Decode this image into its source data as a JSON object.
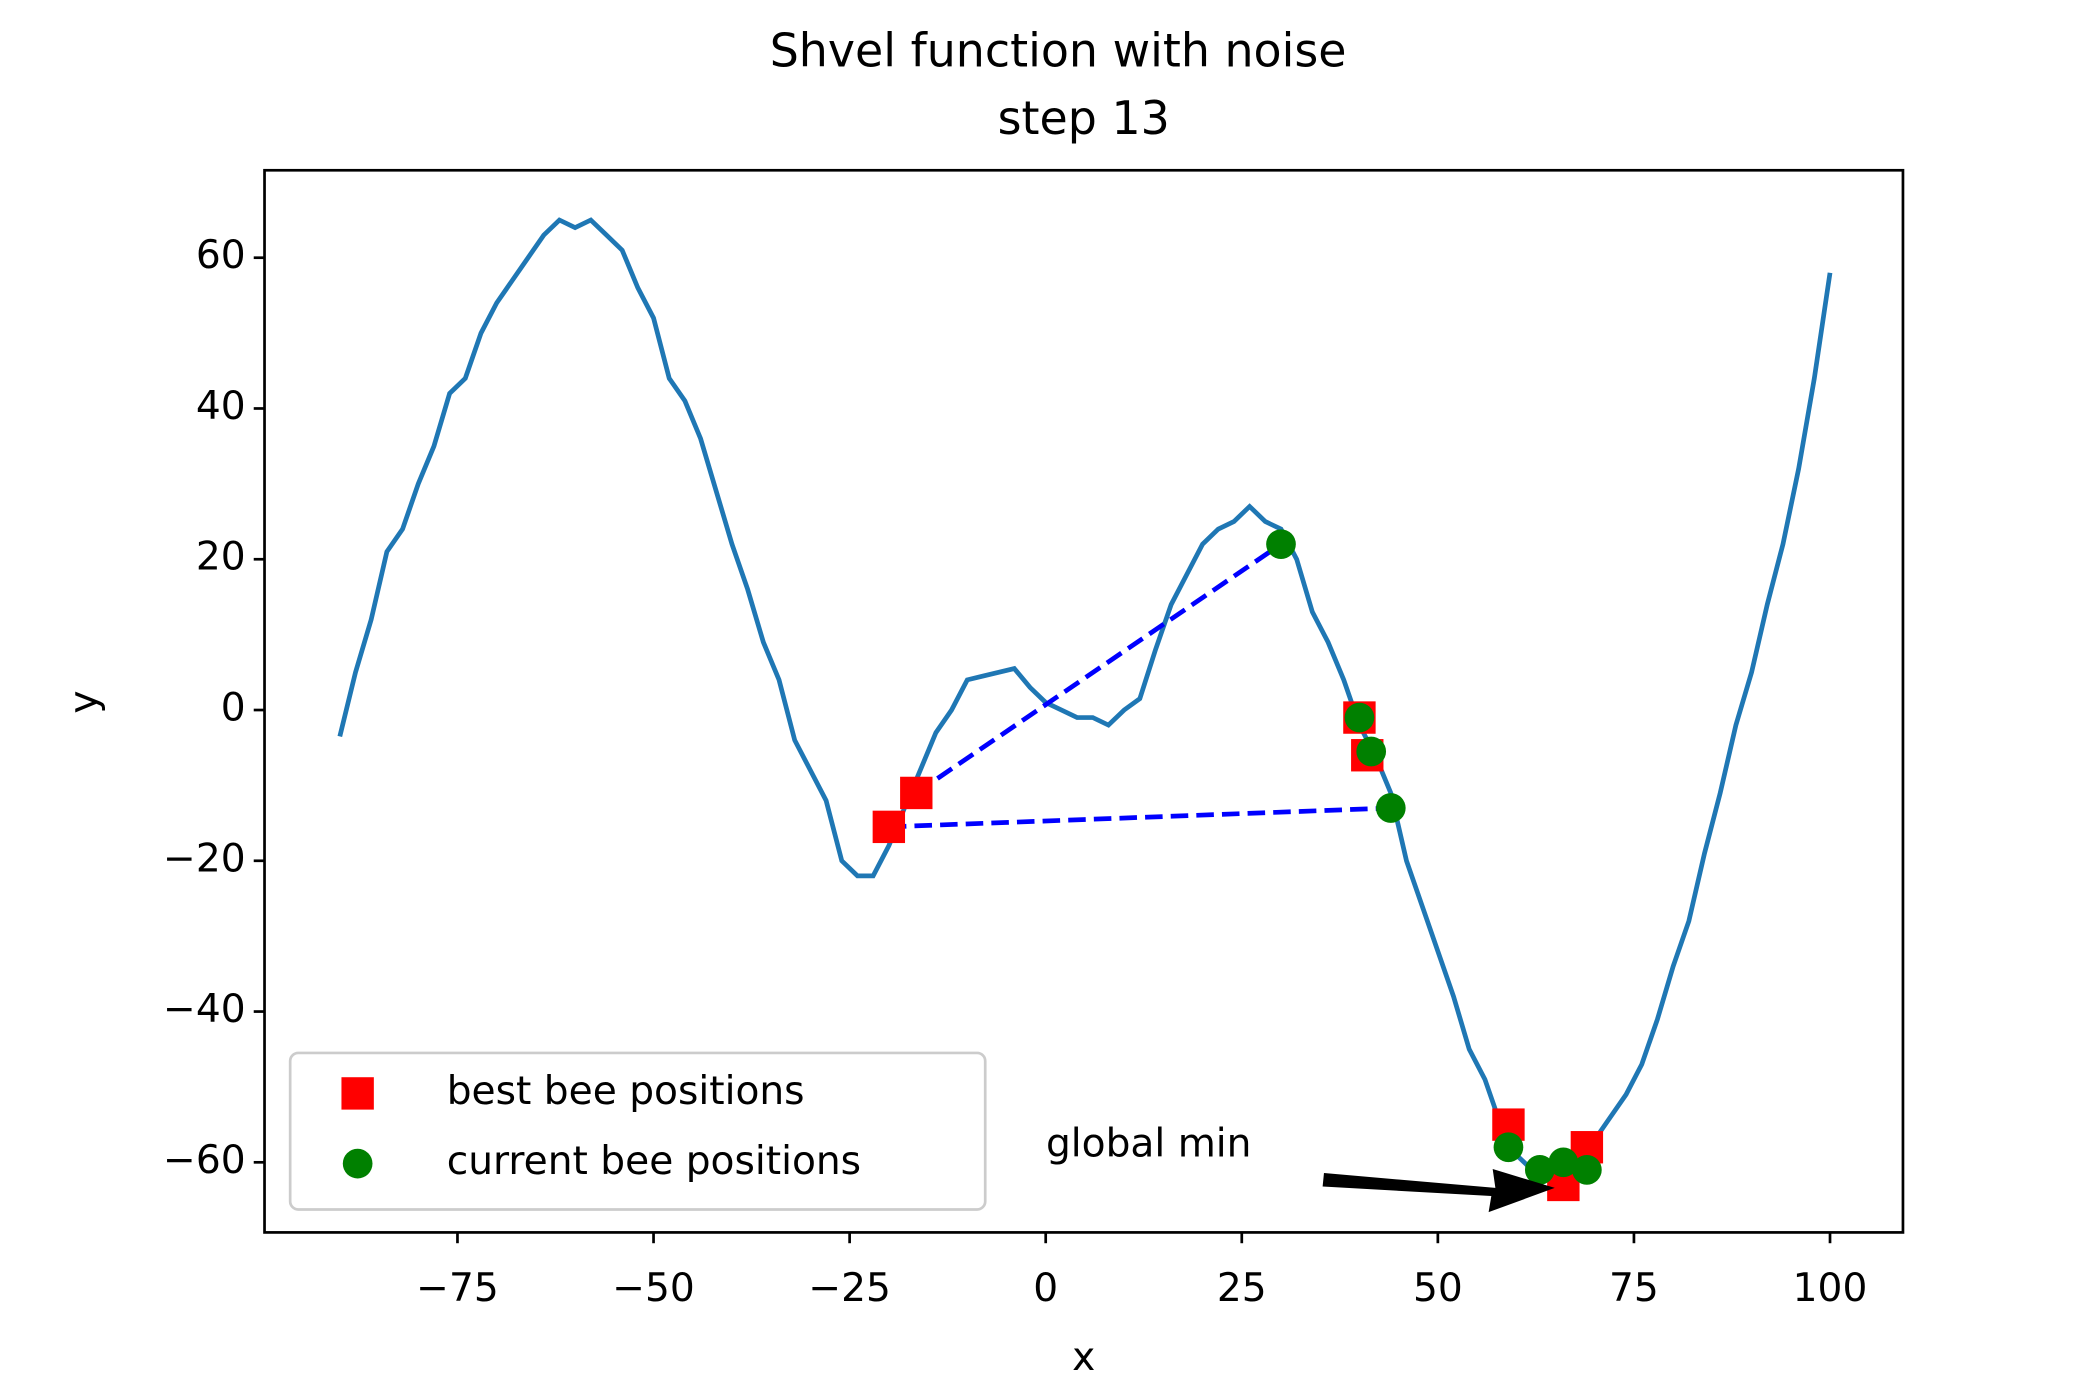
{
  "chart_data": {
    "type": "line",
    "title": "Shvel function with noise",
    "subtitle": "step 13",
    "subtitle_color": "#ff0000",
    "xlabel": "x",
    "ylabel": "y",
    "xlim": [
      -99.6,
      109.3
    ],
    "ylim": [
      -69.3,
      71.6
    ],
    "xticks": [
      {
        "value": -75,
        "label": "−75"
      },
      {
        "value": -50,
        "label": "−50"
      },
      {
        "value": -25,
        "label": "−25"
      },
      0,
      25,
      50,
      75,
      100
    ],
    "yticks": [
      {
        "value": -60,
        "label": "−60"
      },
      {
        "value": -40,
        "label": "−40"
      },
      {
        "value": -20,
        "label": "−20"
      },
      0,
      20,
      40,
      60
    ],
    "x": [
      -90,
      -88,
      -86,
      -84,
      -82,
      -80,
      -78,
      -76,
      -74,
      -72,
      -70,
      -68,
      -66,
      -64,
      -62,
      -60,
      -58,
      -56,
      -54,
      -52,
      -50,
      -48,
      -46,
      -44,
      -42,
      -40,
      -38,
      -36,
      -34,
      -32,
      -30,
      -28,
      -26,
      -24,
      -22,
      -20,
      -18,
      -16,
      -14,
      -12,
      -10,
      -8,
      -6,
      -4,
      -2,
      0,
      2,
      4,
      6,
      8,
      10,
      12,
      14,
      16,
      18,
      20,
      22,
      24,
      26,
      28,
      30,
      32,
      34,
      36,
      38,
      40,
      42,
      44,
      46,
      48,
      50,
      52,
      54,
      56,
      58,
      60,
      62,
      64,
      66,
      68,
      70,
      72,
      74,
      76,
      78,
      80,
      82,
      84,
      86,
      88,
      90,
      92,
      94,
      96,
      98,
      100
    ],
    "series": [
      {
        "color": "#1f77b4",
        "values": [
          -3.5,
          5,
          12,
          21,
          24,
          30,
          35,
          42,
          44,
          50,
          54,
          57,
          60,
          63,
          65,
          64,
          65,
          63,
          61,
          56,
          52,
          44,
          41,
          36,
          29,
          22,
          16,
          9,
          4,
          -4,
          -8,
          -12,
          -20,
          -22,
          -22,
          -18,
          -13,
          -8,
          -3,
          0,
          4,
          4.5,
          5,
          5.5,
          3,
          1,
          0,
          -1,
          -1,
          -2,
          0,
          1.5,
          8,
          14,
          18,
          22,
          24,
          25,
          27,
          25,
          24,
          20,
          13,
          9,
          4,
          -2,
          -6,
          -11,
          -20,
          -26,
          -32,
          -38,
          -45,
          -49,
          -55,
          -59,
          -61,
          -62,
          -62,
          -60,
          -57,
          -54,
          -51,
          -47,
          -41,
          -34,
          -28,
          -19,
          -11,
          -2,
          5,
          14,
          22,
          32,
          44,
          58
        ]
      }
    ],
    "segments": {
      "color": "#0000ff",
      "items": [
        {
          "x": [
            -16.5,
            30
          ],
          "y": [
            -11,
            22
          ]
        },
        {
          "x": [
            -20,
            44
          ],
          "y": [
            -15.5,
            -13
          ]
        }
      ]
    },
    "points": [
      {
        "name": "best bee positions",
        "color": "#ff0000",
        "marker": "square",
        "x": [
          -20,
          -16.5,
          40,
          41,
          59,
          66,
          69
        ],
        "y": [
          -15.5,
          -11,
          -1,
          -6,
          -55,
          -63,
          -58
        ]
      },
      {
        "name": "current bee positions",
        "color": "#008000",
        "marker": "circle",
        "x": [
          30,
          40,
          41.5,
          44,
          59,
          63,
          66,
          69
        ],
        "y": [
          22,
          -1,
          -5.5,
          -13,
          -58,
          -61,
          -60,
          -61
        ]
      }
    ],
    "annotation": "global min",
    "legend": "lower left"
  }
}
